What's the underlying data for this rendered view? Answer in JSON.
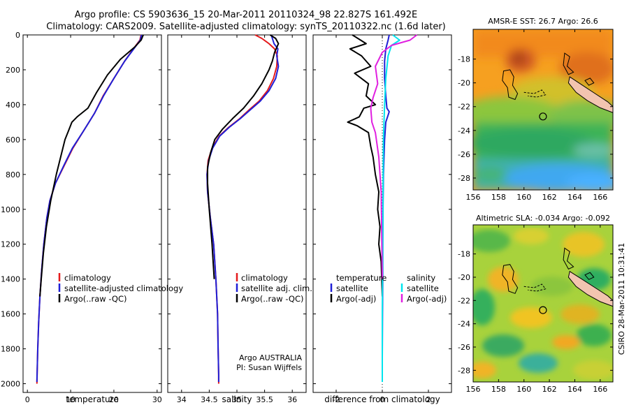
{
  "figure": {
    "title_line1": "Argo profile: CS 5903636_15 20-Mar-2011 20110324_98 22.827S 161.492E",
    "title_line2": "Climatology: CARS2009. Satellite-adjusted climatology: synTS_20110322.nc (1.6d later)",
    "credit": "Argo AUSTRALIA",
    "pi": "PI: Susan Wijffels",
    "side_stamp": "CSIRO 28-Mar-2011 10:31:41"
  },
  "colors": {
    "climatology": "#e41a1c",
    "satellite": "#1f1fd6",
    "argo": "#000000",
    "satellite_salinity": "#00e5ee",
    "argo_salinity": "#e020e0",
    "land": "#f2c4b0"
  },
  "chart_data": [
    {
      "id": "temperature",
      "type": "line",
      "xlabel": "temperature",
      "ylabel": "",
      "xlim": [
        -1,
        31
      ],
      "ylim": [
        2050,
        0
      ],
      "xticks": [
        0,
        10,
        20,
        30
      ],
      "yticks": [
        0,
        200,
        400,
        600,
        800,
        1000,
        1200,
        1400,
        1600,
        1800,
        2000
      ],
      "legend": [
        "climatology",
        "satellite-adjusted climatology",
        "Argo(..raw -QC)"
      ],
      "legend_position": "lower-center",
      "series": [
        {
          "name": "climatology",
          "color_key": "climatology",
          "x": [
            26.3,
            26.0,
            24.5,
            22.5,
            20.0,
            17.5,
            15.5,
            13.0,
            10.5,
            8.5,
            6.5,
            5.2,
            4.5,
            3.8,
            3.3,
            2.9,
            2.6,
            2.4,
            2.2
          ],
          "y": [
            0,
            30,
            80,
            150,
            250,
            350,
            450,
            550,
            650,
            750,
            850,
            950,
            1050,
            1200,
            1350,
            1500,
            1650,
            1800,
            2000
          ]
        },
        {
          "name": "satellite-adjusted climatology",
          "color_key": "satellite",
          "x": [
            26.4,
            26.1,
            24.6,
            22.5,
            20.0,
            17.6,
            15.5,
            13.0,
            10.4,
            8.4,
            6.5,
            5.2,
            4.5,
            3.8,
            3.3,
            2.9,
            2.6,
            2.4,
            2.2
          ],
          "y": [
            0,
            30,
            80,
            150,
            250,
            350,
            450,
            550,
            650,
            750,
            850,
            950,
            1050,
            1200,
            1350,
            1500,
            1650,
            1800,
            1990
          ]
        },
        {
          "name": "Argo(..raw -QC)",
          "color_key": "argo",
          "x": [
            26.8,
            26.3,
            24.8,
            21.5,
            18.5,
            16.0,
            14.0,
            11.5,
            10.3,
            9.5,
            8.7,
            6.7,
            5.4,
            4.4,
            3.7,
            3.2,
            2.9
          ],
          "y": [
            0,
            30,
            70,
            140,
            230,
            330,
            420,
            470,
            500,
            550,
            600,
            800,
            950,
            1100,
            1250,
            1400,
            1500
          ]
        }
      ]
    },
    {
      "id": "salinity",
      "type": "line",
      "xlabel": "salinity",
      "ylabel": "",
      "xlim": [
        33.75,
        36.25
      ],
      "ylim": [
        2050,
        0
      ],
      "xticks": [
        34,
        34.5,
        35,
        35.5,
        36
      ],
      "legend": [
        "climatology",
        "satellite adj. clim.",
        "Argo(..raw -QC)"
      ],
      "legend_position": "lower-right",
      "series": [
        {
          "name": "climatology",
          "color_key": "climatology",
          "x": [
            35.33,
            35.45,
            35.58,
            35.68,
            35.73,
            35.72,
            35.66,
            35.55,
            35.4,
            35.22,
            35.05,
            34.85,
            34.68,
            34.55,
            34.48,
            34.46,
            34.47,
            34.52,
            34.58,
            34.62,
            34.65,
            34.66,
            34.67,
            34.67
          ],
          "y": [
            0,
            20,
            50,
            80,
            120,
            180,
            250,
            320,
            380,
            430,
            480,
            530,
            580,
            650,
            720,
            800,
            900,
            1050,
            1200,
            1400,
            1600,
            1800,
            1950,
            2000
          ]
        },
        {
          "name": "satellite adj. clim.",
          "color_key": "satellite",
          "x": [
            35.62,
            35.64,
            35.67,
            35.74,
            35.72,
            35.75,
            35.7,
            35.58,
            35.42,
            35.24,
            35.06,
            34.86,
            34.69,
            34.56,
            34.49,
            34.46,
            34.47,
            34.52,
            34.58,
            34.62,
            34.65,
            34.66,
            34.67,
            34.67
          ],
          "y": [
            0,
            20,
            50,
            80,
            120,
            180,
            250,
            320,
            380,
            430,
            480,
            530,
            580,
            650,
            720,
            800,
            900,
            1050,
            1200,
            1400,
            1600,
            1800,
            1950,
            1990
          ]
        },
        {
          "name": "Argo(..raw -QC)",
          "color_key": "argo",
          "x": [
            35.6,
            35.7,
            35.75,
            35.68,
            35.64,
            35.58,
            35.45,
            35.3,
            35.12,
            34.92,
            34.74,
            34.6,
            34.52,
            34.47,
            34.47,
            34.5,
            34.55,
            34.59
          ],
          "y": [
            0,
            20,
            50,
            100,
            150,
            200,
            280,
            350,
            420,
            480,
            540,
            600,
            680,
            760,
            850,
            1000,
            1200,
            1400
          ]
        }
      ]
    },
    {
      "id": "difference",
      "type": "line",
      "xlabel": "difference from climatology",
      "ylabel": "",
      "xlim": [
        -3,
        3
      ],
      "ylim": [
        2050,
        0
      ],
      "xticks": [
        -2,
        0,
        2
      ],
      "legend_groups": [
        {
          "heading": "temperature",
          "entries": [
            "satellite",
            "Argo(-adj)"
          ]
        },
        {
          "heading": "salinity",
          "entries": [
            "satellite",
            "Argo(-adj)"
          ]
        }
      ],
      "legend_position": "lower-center",
      "series": [
        {
          "name": "temperature satellite",
          "color_key": "satellite",
          "x": [
            0.3,
            0.25,
            0.15,
            0.1,
            0.1,
            0.15,
            0.2,
            0.3,
            0.25,
            0.15,
            0.1,
            0.05,
            0.03,
            0.02,
            0.02,
            0.01,
            0.0
          ],
          "y": [
            0,
            30,
            80,
            150,
            250,
            350,
            420,
            440,
            460,
            500,
            600,
            800,
            1000,
            1200,
            1400,
            1600,
            1850
          ]
        },
        {
          "name": "temperature Argo(-adj)",
          "color_key": "argo",
          "x": [
            -1.3,
            -0.7,
            -1.4,
            -0.9,
            -0.5,
            -1.2,
            -0.6,
            -0.7,
            -0.3,
            -0.8,
            -1.0,
            -1.5,
            -1.1,
            -0.6,
            -0.5,
            -0.4,
            -0.3,
            -0.15,
            -0.2,
            -0.1,
            -0.15,
            -0.05,
            0.0
          ],
          "y": [
            0,
            50,
            80,
            120,
            180,
            220,
            280,
            350,
            400,
            420,
            470,
            500,
            520,
            560,
            640,
            700,
            800,
            900,
            1000,
            1100,
            1200,
            1300,
            1500
          ]
        },
        {
          "name": "salinity satellite",
          "color_key": "satellite_salinity",
          "x": [
            0.45,
            0.75,
            0.4,
            0.25,
            0.15,
            0.1,
            0.05,
            0.03,
            0.02,
            0.0,
            0.0
          ],
          "y": [
            0,
            30,
            60,
            120,
            250,
            400,
            600,
            900,
            1200,
            1600,
            1990
          ]
        },
        {
          "name": "salinity Argo(-adj)",
          "color_key": "argo_salinity",
          "x": [
            1.5,
            1.2,
            0.4,
            0.0,
            -0.3,
            -0.2,
            -0.4,
            -0.5,
            -0.45,
            -0.3,
            -0.15,
            -0.05,
            0.0
          ],
          "y": [
            0,
            30,
            60,
            100,
            180,
            280,
            360,
            420,
            500,
            560,
            700,
            900,
            1400
          ]
        }
      ]
    },
    {
      "id": "sst_map",
      "type": "heatmap",
      "title": "AMSR-E SST: 26.7 Argo: 26.6",
      "xlim": [
        156,
        167
      ],
      "ylim": [
        -29,
        -15.5
      ],
      "xticks": [
        156,
        158,
        160,
        162,
        164,
        166
      ],
      "yticks": [
        -28,
        -26,
        -24,
        -22,
        -20,
        -18
      ],
      "argo_position": {
        "lon": 161.492,
        "lat": -22.827
      }
    },
    {
      "id": "sla_map",
      "type": "heatmap",
      "title": "Altimetric SLA: -0.034 Argo: -0.092",
      "xlim": [
        156,
        167
      ],
      "ylim": [
        -29,
        -15.5
      ],
      "xticks": [
        156,
        158,
        160,
        162,
        164,
        166
      ],
      "yticks": [
        -28,
        -26,
        -24,
        -22,
        -20,
        -18
      ],
      "argo_position": {
        "lon": 161.492,
        "lat": -22.827
      }
    }
  ]
}
